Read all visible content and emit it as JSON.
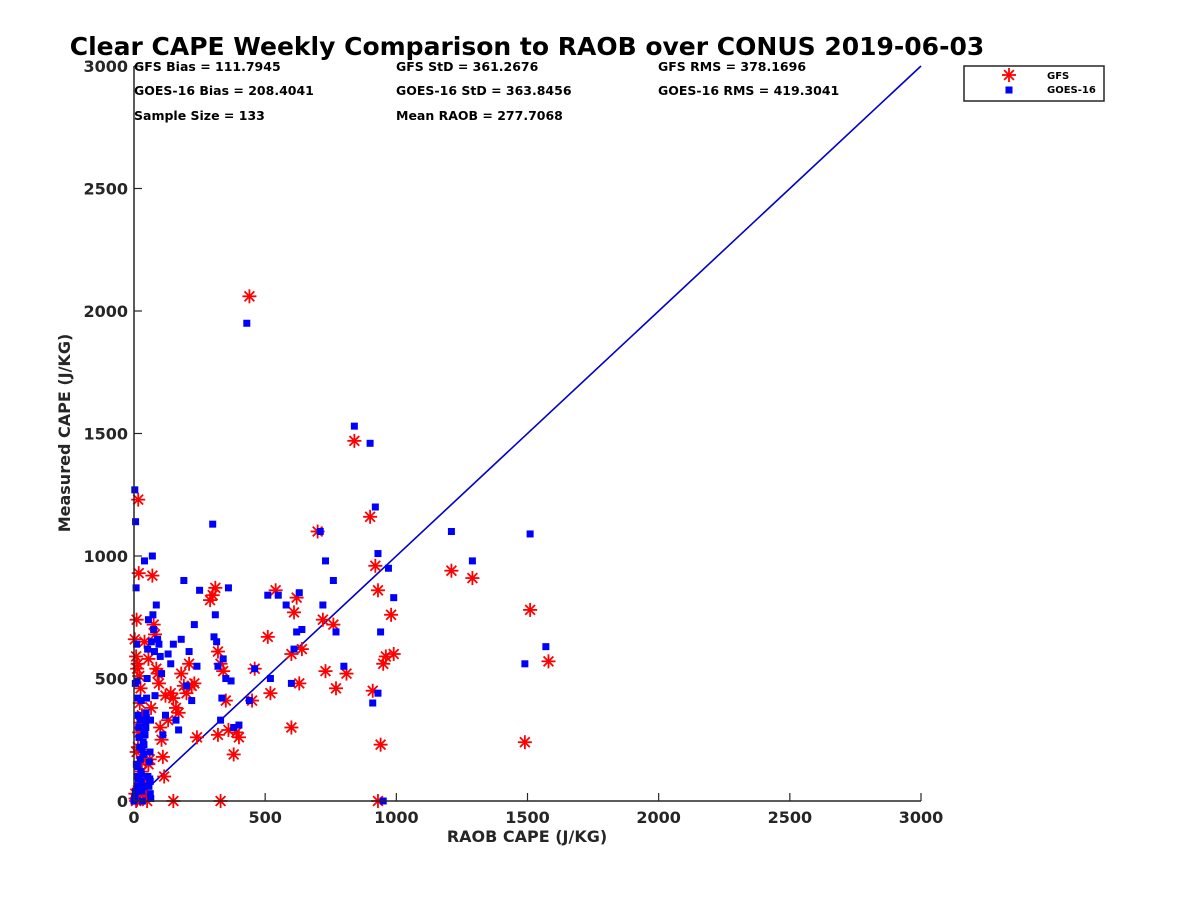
{
  "chart_data": {
    "type": "scatter",
    "title": "Clear CAPE Weekly Comparison to RAOB over CONUS 2019-06-03",
    "xlabel": "RAOB CAPE (J/KG)",
    "ylabel": "Measured CAPE (J/KG)",
    "xlim": [
      0,
      3000
    ],
    "ylim": [
      0,
      3000
    ],
    "xticks": [
      "0",
      "500",
      "1000",
      "1500",
      "2000",
      "2500",
      "3000"
    ],
    "yticks": [
      "0",
      "500",
      "1000",
      "1500",
      "2000",
      "2500",
      "3000"
    ],
    "grid": false,
    "legend_position": "top-right",
    "stats": {
      "gfs_bias": "GFS Bias = 111.7945",
      "gfs_std": "GFS StD = 361.2676",
      "gfs_rms": "GFS RMS = 378.1696",
      "goes_bias": "GOES-16 Bias = 208.4041",
      "goes_std": "GOES-16 StD = 363.8456",
      "goes_rms": "GOES-16 RMS = 419.3041",
      "sample_size": "Sample Size = 133",
      "mean_raob": "Mean RAOB = 277.7068"
    },
    "reference_line": {
      "name": "1:1",
      "x": [
        0,
        3000
      ],
      "y": [
        0,
        3000
      ],
      "color": "#0000cc"
    },
    "series": [
      {
        "name": "GFS",
        "marker": "asterisk",
        "color": "#ff0000",
        "points": [
          [
            3,
            660
          ],
          [
            8,
            590
          ],
          [
            10,
            740
          ],
          [
            12,
            540
          ],
          [
            14,
            560
          ],
          [
            16,
            1230
          ],
          [
            18,
            930
          ],
          [
            20,
            510
          ],
          [
            22,
            400
          ],
          [
            24,
            320
          ],
          [
            26,
            210
          ],
          [
            28,
            160
          ],
          [
            30,
            120
          ],
          [
            32,
            70
          ],
          [
            34,
            30
          ],
          [
            10,
            200
          ],
          [
            15,
            220
          ],
          [
            20,
            280
          ],
          [
            25,
            300
          ],
          [
            30,
            350
          ],
          [
            35,
            90
          ],
          [
            40,
            50
          ],
          [
            45,
            20
          ],
          [
            50,
            0
          ],
          [
            55,
            150
          ],
          [
            60,
            170
          ],
          [
            5,
            30
          ],
          [
            6,
            10
          ],
          [
            8,
            0
          ],
          [
            12,
            5
          ],
          [
            18,
            40
          ],
          [
            22,
            60
          ],
          [
            70,
            920
          ],
          [
            75,
            720
          ],
          [
            80,
            680
          ],
          [
            85,
            540
          ],
          [
            90,
            520
          ],
          [
            95,
            480
          ],
          [
            100,
            300
          ],
          [
            105,
            250
          ],
          [
            110,
            180
          ],
          [
            115,
            100
          ],
          [
            120,
            430
          ],
          [
            130,
            330
          ],
          [
            140,
            440
          ],
          [
            150,
            420
          ],
          [
            160,
            380
          ],
          [
            170,
            360
          ],
          [
            180,
            520
          ],
          [
            190,
            470
          ],
          [
            200,
            440
          ],
          [
            210,
            560
          ],
          [
            220,
            470
          ],
          [
            230,
            480
          ],
          [
            240,
            260
          ],
          [
            150,
            0
          ],
          [
            290,
            820
          ],
          [
            300,
            840
          ],
          [
            310,
            870
          ],
          [
            320,
            610
          ],
          [
            330,
            560
          ],
          [
            340,
            530
          ],
          [
            350,
            410
          ],
          [
            360,
            290
          ],
          [
            320,
            270
          ],
          [
            330,
            0
          ],
          [
            380,
            190
          ],
          [
            390,
            280
          ],
          [
            400,
            260
          ],
          [
            440,
            2060
          ],
          [
            450,
            410
          ],
          [
            460,
            540
          ],
          [
            510,
            670
          ],
          [
            520,
            440
          ],
          [
            540,
            860
          ],
          [
            600,
            600
          ],
          [
            610,
            770
          ],
          [
            620,
            830
          ],
          [
            630,
            480
          ],
          [
            640,
            620
          ],
          [
            600,
            300
          ],
          [
            700,
            1100
          ],
          [
            720,
            740
          ],
          [
            730,
            530
          ],
          [
            760,
            720
          ],
          [
            770,
            460
          ],
          [
            810,
            520
          ],
          [
            840,
            1470
          ],
          [
            900,
            1160
          ],
          [
            910,
            450
          ],
          [
            920,
            960
          ],
          [
            930,
            860
          ],
          [
            940,
            230
          ],
          [
            950,
            560
          ],
          [
            960,
            590
          ],
          [
            980,
            760
          ],
          [
            990,
            600
          ],
          [
            930,
            0
          ],
          [
            1210,
            940
          ],
          [
            1290,
            910
          ],
          [
            1490,
            240
          ],
          [
            1510,
            780
          ],
          [
            1580,
            570
          ],
          [
            40,
            650
          ],
          [
            55,
            580
          ],
          [
            65,
            380
          ],
          [
            25,
            460
          ]
        ]
      },
      {
        "name": "GOES-16",
        "marker": "square",
        "color": "#0000ff",
        "points": [
          [
            3,
            1270
          ],
          [
            6,
            1140
          ],
          [
            8,
            870
          ],
          [
            10,
            640
          ],
          [
            12,
            490
          ],
          [
            14,
            420
          ],
          [
            16,
            350
          ],
          [
            18,
            300
          ],
          [
            20,
            260
          ],
          [
            22,
            220
          ],
          [
            24,
            170
          ],
          [
            26,
            120
          ],
          [
            28,
            80
          ],
          [
            30,
            40
          ],
          [
            32,
            0
          ],
          [
            34,
            60
          ],
          [
            36,
            190
          ],
          [
            38,
            230
          ],
          [
            40,
            980
          ],
          [
            42,
            270
          ],
          [
            44,
            320
          ],
          [
            46,
            360
          ],
          [
            48,
            420
          ],
          [
            50,
            500
          ],
          [
            52,
            620
          ],
          [
            55,
            740
          ],
          [
            58,
            160
          ],
          [
            60,
            90
          ],
          [
            62,
            30
          ],
          [
            64,
            10
          ],
          [
            66,
            650
          ],
          [
            70,
            1000
          ],
          [
            72,
            760
          ],
          [
            75,
            700
          ],
          [
            78,
            610
          ],
          [
            80,
            430
          ],
          [
            85,
            800
          ],
          [
            90,
            660
          ],
          [
            95,
            640
          ],
          [
            100,
            590
          ],
          [
            105,
            520
          ],
          [
            110,
            270
          ],
          [
            120,
            350
          ],
          [
            130,
            600
          ],
          [
            140,
            560
          ],
          [
            150,
            640
          ],
          [
            160,
            330
          ],
          [
            170,
            290
          ],
          [
            180,
            660
          ],
          [
            190,
            900
          ],
          [
            200,
            470
          ],
          [
            210,
            610
          ],
          [
            220,
            410
          ],
          [
            230,
            720
          ],
          [
            240,
            550
          ],
          [
            250,
            860
          ],
          [
            300,
            1130
          ],
          [
            305,
            670
          ],
          [
            310,
            760
          ],
          [
            315,
            650
          ],
          [
            320,
            550
          ],
          [
            330,
            330
          ],
          [
            335,
            420
          ],
          [
            340,
            580
          ],
          [
            350,
            500
          ],
          [
            360,
            870
          ],
          [
            370,
            490
          ],
          [
            380,
            300
          ],
          [
            400,
            310
          ],
          [
            430,
            1950
          ],
          [
            440,
            410
          ],
          [
            460,
            540
          ],
          [
            510,
            840
          ],
          [
            520,
            500
          ],
          [
            550,
            840
          ],
          [
            580,
            800
          ],
          [
            600,
            480
          ],
          [
            610,
            620
          ],
          [
            620,
            690
          ],
          [
            630,
            850
          ],
          [
            640,
            700
          ],
          [
            710,
            1100
          ],
          [
            720,
            800
          ],
          [
            730,
            980
          ],
          [
            760,
            900
          ],
          [
            770,
            690
          ],
          [
            800,
            550
          ],
          [
            840,
            1530
          ],
          [
            900,
            1460
          ],
          [
            910,
            400
          ],
          [
            920,
            1200
          ],
          [
            930,
            1010
          ],
          [
            930,
            440
          ],
          [
            940,
            690
          ],
          [
            950,
            0
          ],
          [
            970,
            950
          ],
          [
            990,
            830
          ],
          [
            1210,
            1100
          ],
          [
            1290,
            980
          ],
          [
            1490,
            560
          ],
          [
            1510,
            1090
          ],
          [
            1570,
            630
          ],
          [
            5,
            480
          ],
          [
            15,
            140
          ],
          [
            45,
            300
          ],
          [
            35,
            240
          ],
          [
            28,
            110
          ],
          [
            62,
            80
          ],
          [
            0,
            0
          ],
          [
            2,
            10
          ],
          [
            4,
            20
          ],
          [
            6,
            40
          ],
          [
            9,
            150
          ],
          [
            11,
            100
          ],
          [
            13,
            60
          ],
          [
            17,
            90
          ],
          [
            19,
            260
          ],
          [
            23,
            330
          ],
          [
            27,
            410
          ],
          [
            31,
            210
          ],
          [
            37,
            270
          ],
          [
            41,
            280
          ],
          [
            47,
            340
          ],
          [
            53,
            100
          ],
          [
            57,
            60
          ],
          [
            61,
            200
          ],
          [
            63,
            330
          ]
        ]
      }
    ]
  }
}
